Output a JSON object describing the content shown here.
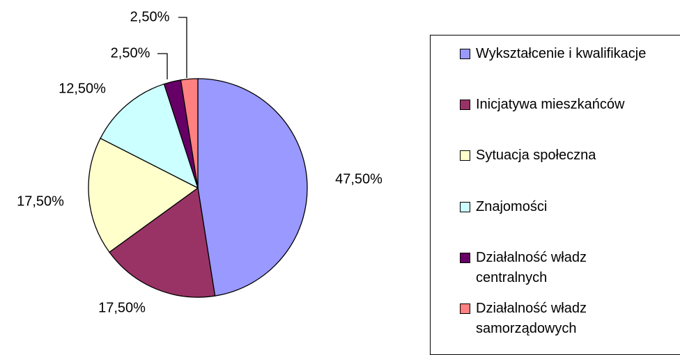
{
  "chart_data": {
    "type": "pie",
    "categories": [
      "Wykształcenie i kwalifikacje",
      "Inicjatywa mieszkańców",
      "Sytuacja społeczna",
      "Znajomości",
      "Działalność władz centralnych",
      "Działalność władz samorządowych"
    ],
    "values": [
      47.5,
      17.5,
      17.5,
      12.5,
      2.5,
      2.5
    ],
    "value_labels": [
      "47,50%",
      "17,50%",
      "17,50%",
      "12,50%",
      "2,50%",
      "2,50%"
    ],
    "colors": [
      "#9999ff",
      "#993366",
      "#ffffcc",
      "#ccffff",
      "#660066",
      "#ff8080"
    ],
    "legend": "right"
  }
}
